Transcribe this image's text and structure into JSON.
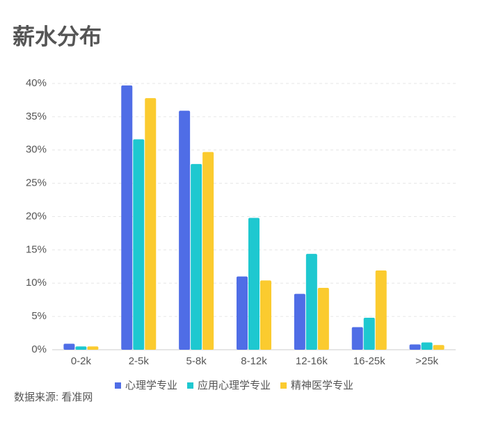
{
  "chart_data": {
    "type": "bar",
    "title": "薪水分布",
    "source": "数据来源: 看准网",
    "categories": [
      "0-2k",
      "2-5k",
      "5-8k",
      "8-12k",
      "12-16k",
      "16-25k",
      ">25k"
    ],
    "series": [
      {
        "name": "心理学专业",
        "color": "#4f6de6",
        "values": [
          0.9,
          39.7,
          35.9,
          11.0,
          8.4,
          3.4,
          0.8
        ]
      },
      {
        "name": "应用心理学专业",
        "color": "#1ec8d0",
        "values": [
          0.5,
          31.6,
          27.9,
          19.8,
          14.4,
          4.8,
          1.1
        ]
      },
      {
        "name": "精神医学专业",
        "color": "#fbcb2f",
        "values": [
          0.5,
          37.8,
          29.7,
          10.4,
          9.3,
          11.9,
          0.7
        ]
      }
    ],
    "ylim": [
      0,
      40
    ],
    "yticks": [
      {
        "value": 0,
        "label": "0%"
      },
      {
        "value": 5,
        "label": "5%"
      },
      {
        "value": 10,
        "label": "10%"
      },
      {
        "value": 15,
        "label": "15%"
      },
      {
        "value": 20,
        "label": "20%"
      },
      {
        "value": 25,
        "label": "25%"
      },
      {
        "value": 30,
        "label": "30%"
      },
      {
        "value": 35,
        "label": "35%"
      },
      {
        "value": 40,
        "label": "40%"
      }
    ],
    "grid": true
  }
}
